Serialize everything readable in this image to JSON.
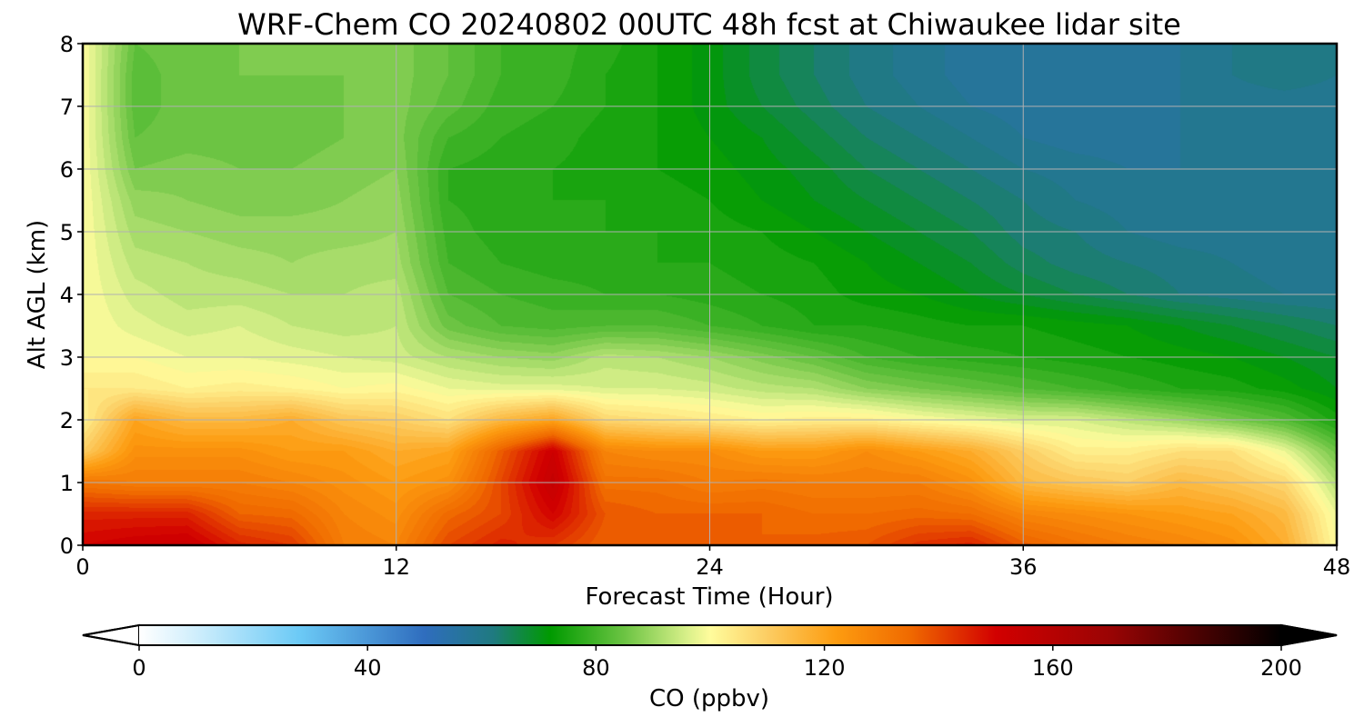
{
  "chart_data": {
    "type": "heatmap",
    "title": "WRF-Chem CO  20240802 00UTC 48h fcst at Chiwaukee lidar site",
    "xlabel": "Forecast Time (Hour)",
    "ylabel": "Alt AGL (km)",
    "xlim": [
      0,
      48
    ],
    "ylim": [
      0,
      8
    ],
    "x_ticks": [
      0,
      12,
      24,
      36,
      48
    ],
    "y_ticks": [
      0,
      1,
      2,
      3,
      4,
      5,
      6,
      7,
      8
    ],
    "grid": true,
    "x": [
      0,
      2,
      4,
      6,
      8,
      10,
      12,
      14,
      16,
      18,
      20,
      22,
      24,
      26,
      28,
      30,
      32,
      34,
      36,
      38,
      40,
      42,
      44,
      46,
      48
    ],
    "y": [
      0,
      0.5,
      1,
      1.5,
      2,
      2.5,
      3,
      3.5,
      4,
      4.5,
      5,
      5.5,
      6,
      6.5,
      7,
      7.5,
      8
    ],
    "z_rows_by_altitude": [
      [
        150,
        152,
        153,
        145,
        142,
        130,
        128,
        140,
        145,
        142,
        136,
        136,
        136,
        136,
        137,
        138,
        143,
        145,
        137,
        133,
        130,
        128,
        125,
        118,
        100
      ],
      [
        145,
        145,
        145,
        136,
        135,
        128,
        125,
        135,
        140,
        150,
        138,
        136,
        136,
        136,
        134,
        134,
        135,
        134,
        128,
        126,
        124,
        122,
        120,
        115,
        98
      ],
      [
        132,
        130,
        130,
        130,
        128,
        125,
        122,
        125,
        140,
        155,
        133,
        133,
        130,
        131,
        130,
        130,
        130,
        125,
        115,
        112,
        110,
        115,
        112,
        108,
        92
      ],
      [
        110,
        125,
        125,
        125,
        122,
        122,
        118,
        120,
        137,
        152,
        128,
        126,
        126,
        122,
        122,
        126,
        122,
        118,
        110,
        103,
        103,
        106,
        106,
        98,
        85
      ],
      [
        102,
        120,
        115,
        115,
        118,
        112,
        110,
        106,
        115,
        120,
        108,
        106,
        104,
        102,
        103,
        103,
        100,
        98,
        96,
        96,
        93,
        90,
        86,
        82,
        75
      ],
      [
        104,
        104,
        102,
        103,
        102,
        100,
        101,
        98,
        97,
        97,
        96,
        96,
        95,
        93,
        92,
        88,
        86,
        84,
        82,
        80,
        78,
        76,
        75,
        73,
        70
      ],
      [
        100,
        100,
        98,
        98,
        97,
        96,
        95,
        92,
        90,
        89,
        93,
        92,
        90,
        87,
        84,
        80,
        78,
        77,
        76,
        75,
        74,
        73,
        72,
        70,
        68
      ],
      [
        100,
        97,
        95,
        96,
        94,
        93,
        94,
        85,
        82,
        81,
        82,
        82,
        80,
        78,
        76,
        76,
        75,
        74,
        74,
        73,
        72,
        70,
        68,
        66,
        64
      ],
      [
        100,
        95,
        93,
        93,
        92,
        92,
        93,
        82,
        80,
        79,
        78,
        78,
        77,
        76,
        75,
        73,
        72,
        70,
        68,
        66,
        64,
        62,
        61,
        60,
        60
      ],
      [
        100,
        93,
        92,
        91,
        90,
        91,
        91,
        80,
        78,
        77,
        77,
        76,
        76,
        75,
        74,
        72,
        70,
        68,
        65,
        63,
        62,
        61,
        60,
        59,
        59
      ],
      [
        100,
        91,
        90,
        89,
        89,
        89,
        90,
        79,
        77,
        77,
        76,
        76,
        75,
        74,
        72,
        70,
        68,
        66,
        63,
        62,
        60,
        59,
        59,
        58,
        58
      ],
      [
        100,
        89,
        88,
        87,
        87,
        88,
        89,
        78,
        77,
        76,
        76,
        75,
        74,
        72,
        70,
        68,
        66,
        64,
        62,
        60,
        59,
        59,
        58,
        58,
        58
      ],
      [
        100,
        86,
        87,
        86,
        86,
        87,
        88,
        78,
        77,
        76,
        75,
        74,
        73,
        71,
        69,
        66,
        64,
        62,
        60,
        59,
        58,
        58,
        58,
        58,
        58
      ],
      [
        100,
        84,
        85,
        85,
        85,
        86,
        87,
        80,
        78,
        77,
        75,
        74,
        72,
        70,
        67,
        64,
        62,
        60,
        58,
        57,
        57,
        58,
        58,
        58,
        58
      ],
      [
        100,
        83,
        85,
        85,
        85,
        86,
        87,
        83,
        79,
        78,
        76,
        74,
        71,
        68,
        65,
        62,
        60,
        58,
        57,
        56,
        56,
        58,
        59,
        59,
        59
      ],
      [
        100,
        83,
        85,
        86,
        86,
        86,
        87,
        84,
        80,
        79,
        76,
        74,
        71,
        67,
        64,
        61,
        59,
        57,
        57,
        56,
        56,
        58,
        60,
        61,
        60
      ],
      [
        100,
        84,
        85,
        86,
        86,
        86,
        87,
        84,
        80,
        79,
        77,
        74,
        71,
        67,
        64,
        61,
        59,
        57,
        57,
        56,
        56,
        58,
        60,
        62,
        62
      ]
    ],
    "colorbar": {
      "label": "CO  (ppbv)",
      "vmin": 0,
      "vmax": 200,
      "ticks": [
        0,
        40,
        80,
        120,
        160,
        200
      ],
      "extend": "both",
      "color_stops": [
        {
          "v": 0,
          "c": "#ffffff"
        },
        {
          "v": 10,
          "c": "#cfeefc"
        },
        {
          "v": 28,
          "c": "#6ccaf6"
        },
        {
          "v": 50,
          "c": "#2f6dbe"
        },
        {
          "v": 62,
          "c": "#1f7a80"
        },
        {
          "v": 72,
          "c": "#009a00"
        },
        {
          "v": 85,
          "c": "#6cc443"
        },
        {
          "v": 96,
          "c": "#d9f08a"
        },
        {
          "v": 100,
          "c": "#fffc9c"
        },
        {
          "v": 110,
          "c": "#fccd63"
        },
        {
          "v": 122,
          "c": "#fd9c10"
        },
        {
          "v": 135,
          "c": "#f06a00"
        },
        {
          "v": 150,
          "c": "#d20000"
        },
        {
          "v": 170,
          "c": "#9a0404"
        },
        {
          "v": 200,
          "c": "#000000"
        }
      ]
    }
  }
}
